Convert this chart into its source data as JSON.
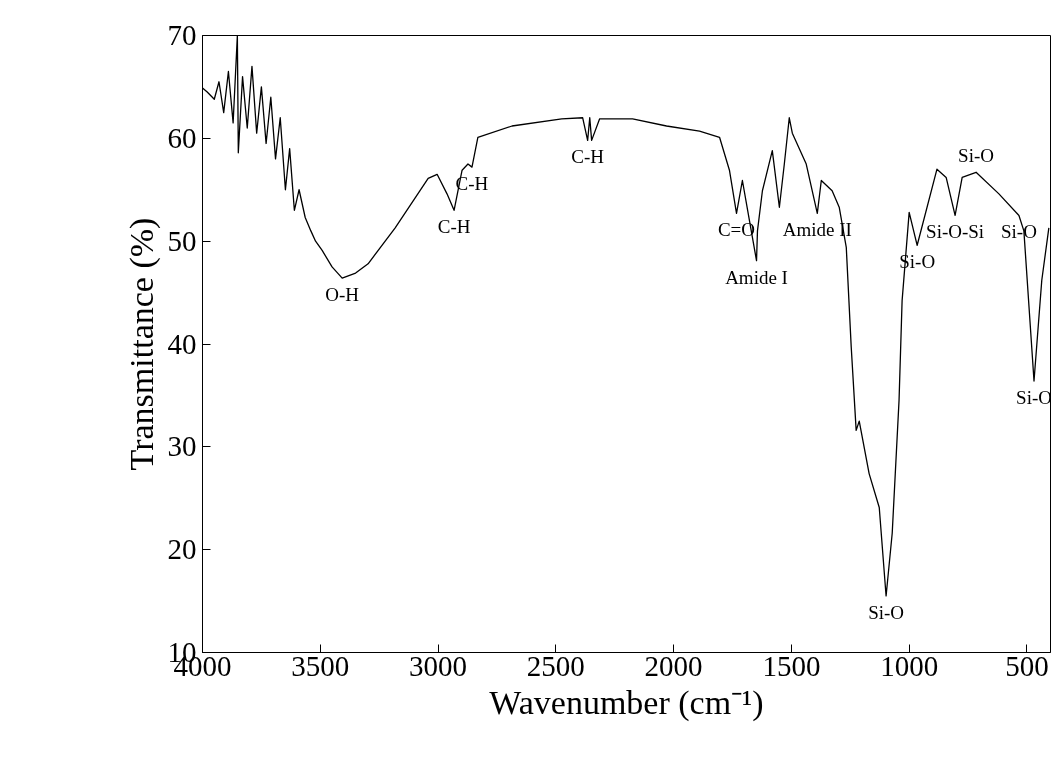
{
  "chart_data": {
    "type": "line",
    "xlabel": "Wavenumber (cm⁻¹)",
    "ylabel": "Transmittance (%)",
    "xlim": [
      4000,
      400
    ],
    "ylim": [
      10,
      70
    ],
    "xticks": [
      4000,
      3500,
      3000,
      2500,
      2000,
      1500,
      1000,
      500
    ],
    "yticks": [
      10,
      20,
      30,
      40,
      50,
      60,
      70
    ],
    "grid": false,
    "marker": "none",
    "line_style": "solid",
    "series": [
      {
        "color": "#000000",
        "x": [
          4000,
          3980,
          3950,
          3930,
          3910,
          3890,
          3870,
          3852,
          3848,
          3830,
          3810,
          3790,
          3770,
          3750,
          3730,
          3710,
          3690,
          3670,
          3648,
          3630,
          3610,
          3590,
          3564,
          3540,
          3520,
          3492,
          3450,
          3407,
          3350,
          3297,
          3182,
          3042,
          3004,
          2962,
          2932,
          2898,
          2873,
          2856,
          2831,
          2686,
          2475,
          2386,
          2365,
          2356,
          2348,
          2314,
          2174,
          2030,
          1890,
          1805,
          1763,
          1733,
          1708,
          1678,
          1648,
          1644,
          1623,
          1581,
          1551,
          1530,
          1509,
          1496,
          1437,
          1390,
          1373,
          1327,
          1297,
          1267,
          1246,
          1225,
          1212,
          1170,
          1127,
          1098,
          1072,
          1043,
          1030,
          1000,
          966,
          882,
          843,
          805,
          775,
          716,
          619,
          534,
          513,
          470,
          437,
          407
        ],
        "values": [
          64.9,
          64.5,
          63.8,
          65.5,
          62.5,
          66.5,
          61.5,
          70,
          58.6,
          66,
          61,
          67,
          60.5,
          65,
          59.5,
          64,
          58,
          62,
          55,
          59,
          53,
          55,
          52.3,
          51,
          50,
          49.1,
          47.5,
          46.4,
          46.9,
          47.8,
          51.3,
          56.1,
          56.5,
          54.6,
          53.0,
          56.9,
          57.5,
          57.2,
          60.1,
          61.2,
          61.9,
          62.0,
          59.8,
          62.0,
          59.8,
          61.9,
          61.9,
          61.2,
          60.7,
          60.1,
          56.9,
          52.7,
          55.9,
          52.0,
          48.1,
          51.0,
          54.9,
          58.8,
          53.3,
          57.5,
          62.0,
          60.5,
          57.5,
          52.7,
          55.9,
          54.9,
          53.3,
          49.4,
          39.7,
          31.6,
          32.5,
          27.4,
          24.1,
          15.5,
          21.6,
          34.5,
          44.2,
          52.8,
          49.6,
          57.0,
          56.2,
          52.5,
          56.2,
          56.7,
          54.6,
          52.5,
          51.0,
          36.4,
          46.2,
          51.3
        ]
      }
    ],
    "annotations": [
      {
        "text": "O-H",
        "x": 3407,
        "y": 46.4
      },
      {
        "text": "C-H",
        "x": 2932,
        "y": 53.0
      },
      {
        "text": "C-H",
        "x": 2856,
        "y": 57.2
      },
      {
        "text": "C-H",
        "x": 2365,
        "y": 59.8
      },
      {
        "text": "C=O",
        "x": 1733,
        "y": 52.7
      },
      {
        "text": "Amide II",
        "x": 1390,
        "y": 52.7
      },
      {
        "text": "Amide I",
        "x": 1648,
        "y": 48.1
      },
      {
        "text": "Si-O",
        "x": 1098,
        "y": 15.5
      },
      {
        "text": "Si-O",
        "x": 966,
        "y": 49.6
      },
      {
        "text": "Si-O-Si",
        "x": 805,
        "y": 52.5
      },
      {
        "text": "Si-O",
        "x": 716,
        "y": 56.7
      },
      {
        "text": "Si-O",
        "x": 534,
        "y": 52.5
      },
      {
        "text": "Si-O",
        "x": 470,
        "y": 36.4
      }
    ]
  }
}
